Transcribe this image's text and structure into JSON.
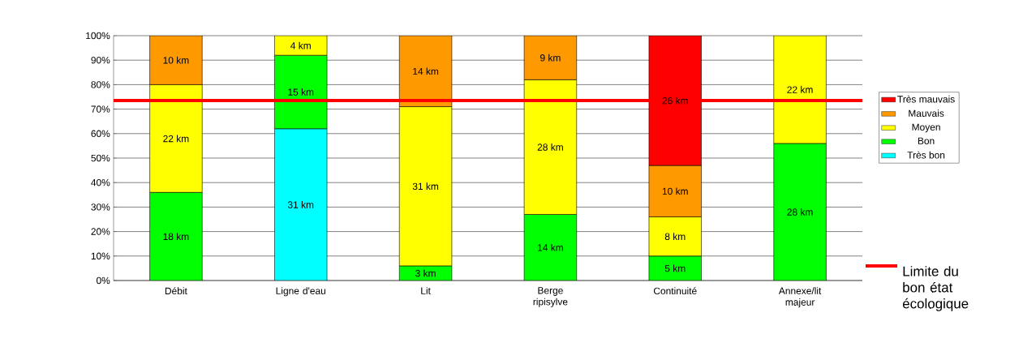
{
  "chart_data": {
    "type": "bar",
    "stacked": true,
    "categories": [
      "Débit",
      "Ligne d'eau",
      "Lit",
      "Berge ripisylve",
      "Continuité",
      "Annexe/lit majeur"
    ],
    "series": [
      {
        "name": "Très bon",
        "color": "#00ffff",
        "values": [
          null,
          62,
          null,
          null,
          null,
          null
        ]
      },
      {
        "name": "Bon",
        "color": "#00ff00",
        "values": [
          36,
          30,
          6,
          27,
          10,
          56
        ]
      },
      {
        "name": "Moyen",
        "color": "#ffff00",
        "values": [
          44,
          8,
          65,
          55,
          16,
          44
        ]
      },
      {
        "name": "Mauvais",
        "color": "#ff9900",
        "values": [
          20,
          null,
          29,
          18,
          21,
          null
        ]
      },
      {
        "name": "Très mauvais",
        "color": "#ff0000",
        "values": [
          null,
          null,
          null,
          null,
          53,
          null
        ]
      }
    ],
    "annotations": [
      "18 km",
      "22 km",
      "10 km",
      "31 km",
      "15 km",
      "4 km",
      "3 km",
      "31 km",
      "14 km",
      "14 km",
      "28 km",
      "9 km",
      "5 km",
      "8 km",
      "10 km",
      "26 km",
      "28 km",
      "22 km"
    ],
    "ylim": [
      0,
      100
    ],
    "yticks": [
      {
        "value": 0,
        "label": "0%"
      },
      {
        "value": 10,
        "label": "10%"
      },
      {
        "value": 20,
        "label": "20%"
      },
      {
        "value": 30,
        "label": "30%"
      },
      {
        "value": 40,
        "label": "40%"
      },
      {
        "value": 50,
        "label": "50%"
      },
      {
        "value": 60,
        "label": "60%"
      },
      {
        "value": 70,
        "label": "70%"
      },
      {
        "value": 80,
        "label": "80%"
      },
      {
        "value": 90,
        "label": "90%"
      },
      {
        "value": 100,
        "label": "100%"
      }
    ],
    "ref_lines": [
      {
        "axis": "y",
        "value": 73.5,
        "label": "Limite du bon état écologique",
        "color": "#ff0000"
      }
    ],
    "grid": "y",
    "legend": "right"
  }
}
